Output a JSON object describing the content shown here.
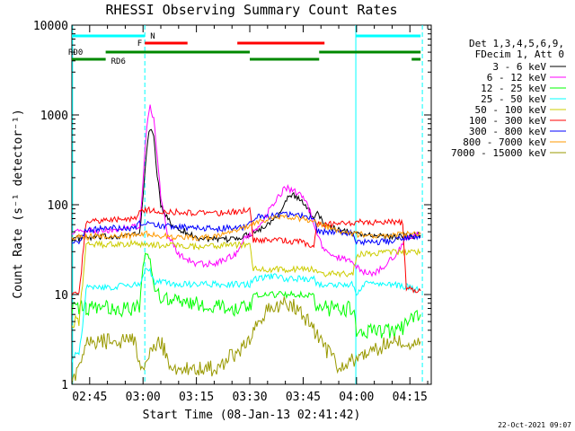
{
  "chart_data": {
    "type": "line",
    "title": "RHESSI Observing Summary Count Rates",
    "xlabel": "Start Time (08-Jan-13 02:41:42)",
    "ylabel": "Count Rate (s⁻¹ detector⁻¹)",
    "yscale": "log",
    "ylim": [
      1,
      10000
    ],
    "xlim_minutes": [
      160,
      261
    ],
    "x_ticks": [
      {
        "label": "02:45",
        "minutes": 165
      },
      {
        "label": "03:00",
        "minutes": 180
      },
      {
        "label": "03:15",
        "minutes": 195
      },
      {
        "label": "03:30",
        "minutes": 210
      },
      {
        "label": "03:45",
        "minutes": 225
      },
      {
        "label": "04:00",
        "minutes": 240
      },
      {
        "label": "04:15",
        "minutes": 255
      }
    ],
    "y_ticks": [
      {
        "label": "1",
        "value": 1
      },
      {
        "label": "10",
        "value": 10
      },
      {
        "label": "100",
        "value": 100
      },
      {
        "label": "1000",
        "value": 1000
      },
      {
        "label": "10000",
        "value": 10000
      }
    ],
    "legend_header": [
      "Det 1,3,4,5,6,9,",
      "FDecim 1, Att 0"
    ],
    "legend_position": "right",
    "series": [
      {
        "name": "3 - 6 keV",
        "color": "#000000",
        "points": [
          [
            160,
            42
          ],
          [
            162,
            42
          ],
          [
            170,
            44
          ],
          [
            179,
            47
          ],
          [
            180,
            120
          ],
          [
            181,
            420
          ],
          [
            182,
            720
          ],
          [
            183,
            560
          ],
          [
            184,
            220
          ],
          [
            185,
            95
          ],
          [
            188,
            60
          ],
          [
            195,
            43
          ],
          [
            202,
            40
          ],
          [
            208,
            44
          ],
          [
            214,
            56
          ],
          [
            218,
            80
          ],
          [
            220,
            110
          ],
          [
            222,
            130
          ],
          [
            225,
            105
          ],
          [
            228,
            72
          ],
          [
            229,
            85
          ],
          [
            231,
            60
          ],
          [
            235,
            52
          ],
          [
            240,
            48
          ],
          [
            245,
            45
          ],
          [
            250,
            44
          ],
          [
            255,
            45
          ],
          [
            258,
            46
          ]
        ]
      },
      {
        "name": "6 - 12 keV",
        "color": "#ff00ff",
        "points": [
          [
            160,
            50
          ],
          [
            162,
            50
          ],
          [
            170,
            52
          ],
          [
            179,
            58
          ],
          [
            180,
            180
          ],
          [
            181,
            700
          ],
          [
            182,
            1250
          ],
          [
            183,
            900
          ],
          [
            184,
            360
          ],
          [
            185,
            120
          ],
          [
            187,
            45
          ],
          [
            190,
            28
          ],
          [
            195,
            22
          ],
          [
            200,
            22
          ],
          [
            206,
            28
          ],
          [
            208,
            40
          ],
          [
            213,
            60
          ],
          [
            217,
            110
          ],
          [
            220,
            155
          ],
          [
            223,
            140
          ],
          [
            226,
            110
          ],
          [
            228,
            60
          ],
          [
            231,
            30
          ],
          [
            235,
            26
          ],
          [
            239,
            24
          ],
          [
            241,
            18
          ],
          [
            245,
            17
          ],
          [
            250,
            25
          ],
          [
            255,
            45
          ],
          [
            258,
            48
          ]
        ]
      },
      {
        "name": "12 - 25 keV",
        "color": "#00ff00",
        "points": [
          [
            160,
            7
          ],
          [
            164,
            7
          ],
          [
            164,
            7
          ],
          [
            171,
            7
          ],
          [
            172,
            7
          ],
          [
            178,
            7
          ],
          [
            179,
            7
          ],
          [
            180,
            22
          ],
          [
            181,
            30
          ],
          [
            182,
            24
          ],
          [
            183,
            12
          ],
          [
            185,
            9
          ],
          [
            195,
            8
          ],
          [
            204,
            7
          ],
          [
            210,
            7
          ],
          [
            211,
            10
          ],
          [
            216,
            10
          ],
          [
            220,
            10
          ],
          [
            224,
            10
          ],
          [
            228,
            10
          ],
          [
            229,
            7
          ],
          [
            239,
            7
          ],
          [
            240,
            4
          ],
          [
            252,
            4
          ],
          [
            255,
            5
          ],
          [
            258,
            6
          ]
        ]
      },
      {
        "name": "25 - 50 keV",
        "color": "#00ffff",
        "points": [
          [
            160,
            2
          ],
          [
            162,
            2
          ],
          [
            164,
            12
          ],
          [
            171,
            12
          ],
          [
            178,
            13
          ],
          [
            179,
            13
          ],
          [
            180,
            16
          ],
          [
            181,
            20
          ],
          [
            182,
            18
          ],
          [
            183,
            14
          ],
          [
            190,
            13
          ],
          [
            200,
            13
          ],
          [
            210,
            13
          ],
          [
            211,
            15
          ],
          [
            216,
            16
          ],
          [
            220,
            15
          ],
          [
            225,
            15
          ],
          [
            228,
            15
          ],
          [
            229,
            13
          ],
          [
            239,
            13
          ],
          [
            240,
            10
          ],
          [
            242,
            13
          ],
          [
            250,
            13
          ],
          [
            255,
            12
          ],
          [
            258,
            11
          ]
        ]
      },
      {
        "name": "50 - 100 keV",
        "color": "#cccc00",
        "points": [
          [
            160,
            5
          ],
          [
            162,
            5
          ],
          [
            164,
            36
          ],
          [
            170,
            36
          ],
          [
            178,
            37
          ],
          [
            179,
            35
          ],
          [
            181,
            36
          ],
          [
            188,
            35
          ],
          [
            195,
            34
          ],
          [
            200,
            35
          ],
          [
            208,
            36
          ],
          [
            210,
            36
          ],
          [
            211,
            19
          ],
          [
            216,
            19
          ],
          [
            220,
            19
          ],
          [
            225,
            19
          ],
          [
            228,
            19
          ],
          [
            229,
            17
          ],
          [
            239,
            17
          ],
          [
            240,
            28
          ],
          [
            245,
            29
          ],
          [
            255,
            30
          ],
          [
            258,
            30
          ]
        ]
      },
      {
        "name": "100 - 300 keV",
        "color": "#ff0000",
        "points": [
          [
            160,
            10
          ],
          [
            162,
            10
          ],
          [
            164,
            66
          ],
          [
            170,
            67
          ],
          [
            178,
            70
          ],
          [
            179,
            88
          ],
          [
            185,
            85
          ],
          [
            195,
            80
          ],
          [
            200,
            80
          ],
          [
            208,
            84
          ],
          [
            210,
            95
          ],
          [
            211,
            40
          ],
          [
            216,
            40
          ],
          [
            220,
            40
          ],
          [
            225,
            38
          ],
          [
            228,
            35
          ],
          [
            229,
            60
          ],
          [
            239,
            62
          ],
          [
            240,
            64
          ],
          [
            245,
            64
          ],
          [
            253,
            64
          ],
          [
            254,
            12
          ],
          [
            258,
            11
          ]
        ]
      },
      {
        "name": "300 - 800 keV",
        "color": "#0000ff",
        "points": [
          [
            160,
            38
          ],
          [
            162,
            38
          ],
          [
            164,
            52
          ],
          [
            170,
            55
          ],
          [
            178,
            55
          ],
          [
            179,
            62
          ],
          [
            185,
            58
          ],
          [
            195,
            55
          ],
          [
            200,
            54
          ],
          [
            208,
            56
          ],
          [
            210,
            60
          ],
          [
            211,
            72
          ],
          [
            216,
            75
          ],
          [
            220,
            78
          ],
          [
            225,
            74
          ],
          [
            228,
            70
          ],
          [
            229,
            50
          ],
          [
            239,
            48
          ],
          [
            240,
            38
          ],
          [
            245,
            38
          ],
          [
            250,
            40
          ],
          [
            255,
            44
          ],
          [
            258,
            44
          ]
        ]
      },
      {
        "name": "800 - 7000 keV",
        "color": "#ff9900",
        "points": [
          [
            160,
            44
          ],
          [
            164,
            44
          ],
          [
            170,
            45
          ],
          [
            179,
            46
          ],
          [
            181,
            47
          ],
          [
            190,
            43
          ],
          [
            195,
            42
          ],
          [
            200,
            44
          ],
          [
            208,
            53
          ],
          [
            212,
            64
          ],
          [
            216,
            72
          ],
          [
            220,
            74
          ],
          [
            225,
            70
          ],
          [
            230,
            60
          ],
          [
            235,
            52
          ],
          [
            240,
            47
          ],
          [
            245,
            45
          ],
          [
            250,
            46
          ],
          [
            255,
            47
          ],
          [
            258,
            47
          ]
        ]
      },
      {
        "name": "7000 - 15000 keV",
        "color": "#999900",
        "points": [
          [
            160,
            1
          ],
          [
            164,
            3
          ],
          [
            171,
            3
          ],
          [
            178,
            3
          ],
          [
            179,
            1.5
          ],
          [
            185,
            3
          ],
          [
            188,
            1.5
          ],
          [
            200,
            1.5
          ],
          [
            208,
            2.5
          ],
          [
            210,
            3
          ],
          [
            212,
            5
          ],
          [
            216,
            7
          ],
          [
            220,
            8
          ],
          [
            224,
            7
          ],
          [
            228,
            4
          ],
          [
            230,
            3
          ],
          [
            235,
            1.5
          ],
          [
            240,
            2
          ],
          [
            250,
            3
          ],
          [
            255,
            3
          ],
          [
            258,
            3
          ]
        ]
      }
    ],
    "attenuator_bars": [
      {
        "label": "N",
        "color": "#00ffff",
        "segments": [
          [
            160,
            180.5
          ],
          [
            239.8,
            258
          ]
        ]
      },
      {
        "label": "F",
        "color": "#ff0000",
        "segments": [
          [
            180.5,
            192.5
          ],
          [
            206.5,
            231
          ]
        ]
      },
      {
        "label": "RD0",
        "color": "#008800",
        "segments": [
          [
            169.5,
            210
          ],
          [
            229.5,
            258
          ]
        ]
      },
      {
        "label": "RD6",
        "color": "#008800",
        "segments": [
          [
            160,
            169.5
          ],
          [
            210,
            229.5
          ],
          [
            255.5,
            258
          ]
        ]
      }
    ],
    "vertical_markers": [
      {
        "minutes": 160.2,
        "color": "#00ffff",
        "style": "solid"
      },
      {
        "minutes": 180.5,
        "color": "#00ffff",
        "style": "dashed"
      },
      {
        "minutes": 239.8,
        "color": "#00ffff",
        "style": "solid"
      },
      {
        "minutes": 258.5,
        "color": "#00ffff",
        "style": "dashed"
      }
    ],
    "timestamp": "22-Oct-2021 09:07"
  }
}
